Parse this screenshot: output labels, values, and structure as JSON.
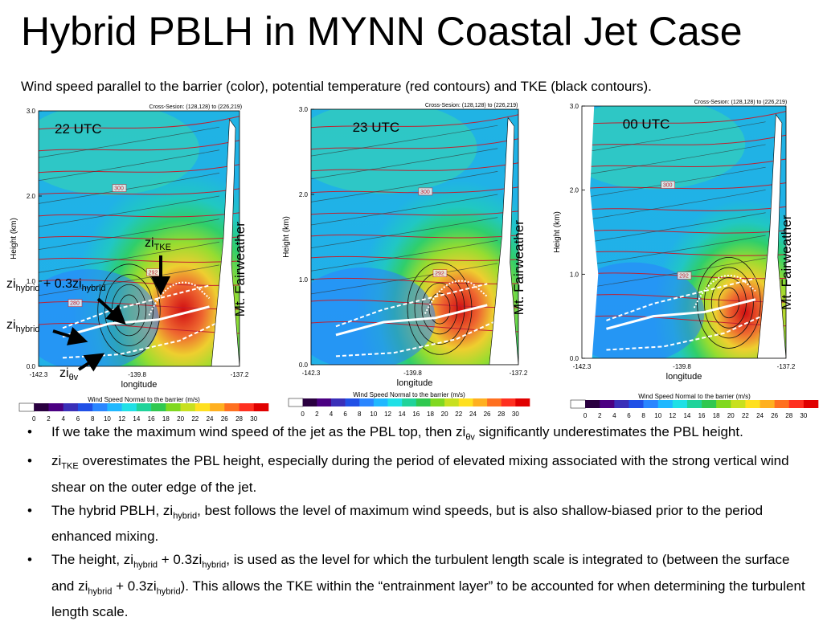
{
  "slide": {
    "title": "Hybrid PBLH in MYNN Coastal Jet Case",
    "subtitle": "Wind speed parallel to the barrier (color), potential temperature (red contours) and TKE (black contours)."
  },
  "chart_data": [
    {
      "type": "heatmap",
      "panel_label": "22 UTC",
      "cross_section": "Cross-Sesion: (128,128) to (226,219)",
      "xlabel": "longitude",
      "ylabel": "Height (km)",
      "x_ticks": [
        "-142.3",
        "-139.8",
        "-137.2"
      ],
      "y_ticks": [
        "0.0",
        "1.0",
        "2.0",
        "3.0"
      ],
      "ylim": [
        0,
        3
      ],
      "xlim": [
        -142.3,
        -137.2
      ],
      "contour_labels": [
        "300",
        "292",
        "280"
      ],
      "terrain_label": "Mt. Fairweather",
      "colorbar_title": "Wind Speed Normal to the barrier (m/s)",
      "colorbar_ticks": [
        "0",
        "2",
        "4",
        "6",
        "8",
        "10",
        "12",
        "14",
        "16",
        "18",
        "20",
        "22",
        "24",
        "26",
        "28",
        "30"
      ]
    },
    {
      "type": "heatmap",
      "panel_label": "23 UTC",
      "cross_section": "Cross-Sesion: (128,128) to (226,219)",
      "xlabel": "longitude",
      "ylabel": "Height (km)",
      "x_ticks": [
        "-142.3",
        "-139.8",
        "-137.2"
      ],
      "y_ticks": [
        "0.0",
        "1.0",
        "2.0",
        "3.0"
      ],
      "ylim": [
        0,
        3
      ],
      "xlim": [
        -142.3,
        -137.2
      ],
      "contour_labels": [
        "300",
        "292"
      ],
      "terrain_label": "Mt. Fairweather",
      "colorbar_title": "Wind Speed Normal to the barrier (m/s)",
      "colorbar_ticks": [
        "0",
        "2",
        "4",
        "6",
        "8",
        "10",
        "12",
        "14",
        "16",
        "18",
        "20",
        "22",
        "24",
        "26",
        "28",
        "30"
      ]
    },
    {
      "type": "heatmap",
      "panel_label": "00 UTC",
      "cross_section": "Cross-Sesion: (128,128) to (226,219)",
      "xlabel": "longitude",
      "ylabel": "Height (km)",
      "x_ticks": [
        "-142.3",
        "-139.8",
        "-137.2"
      ],
      "y_ticks": [
        "0.0",
        "1.0",
        "2.0",
        "3.0"
      ],
      "ylim": [
        0,
        3
      ],
      "xlim": [
        -142.3,
        -137.2
      ],
      "contour_labels": [
        "300",
        "292"
      ],
      "terrain_label": "Mt. Fairweather",
      "colorbar_title": "Wind Speed Normal to the barrier (m/s)",
      "colorbar_ticks": [
        "0",
        "2",
        "4",
        "6",
        "8",
        "10",
        "12",
        "14",
        "16",
        "18",
        "20",
        "22",
        "24",
        "26",
        "28",
        "30"
      ]
    }
  ],
  "annotations": {
    "zi": "zi",
    "tke_sub": "TKE",
    "hybrid_sub": "hybrid",
    "thetav_sub": "θv",
    "plus_03": " + 0.3zi"
  },
  "bullets": {
    "b1": {
      "a": "If we take the maximum wind speed of the jet as the PBL top, then zi",
      "sub": "θv",
      "b": " significantly underestimates the PBL height."
    },
    "b2": {
      "a": "zi",
      "sub": "TKE",
      "b": " overestimates the PBL height, especially during the period of elevated mixing associated with the strong vertical wind shear on the outer edge of the jet."
    },
    "b3": {
      "a": "The hybrid PBLH, zi",
      "sub": "hybrid",
      "b": ", best follows the level of maximum wind speeds, but is also shallow-biased prior to the period enhanced mixing."
    },
    "b4": {
      "a": "The height, zi",
      "sub1": "hybrid",
      "b": " + 0.3zi",
      "sub2": "hybrid",
      "c": ", is used as the level for which the turbulent length scale is integrated to (between the surface and zi",
      "sub3": "hybrid",
      "d": " + 0.3zi",
      "sub4": "hybrid",
      "e": "). This allows the TKE within the “entrainment layer” to be accounted for when determining the turbulent length scale."
    }
  }
}
